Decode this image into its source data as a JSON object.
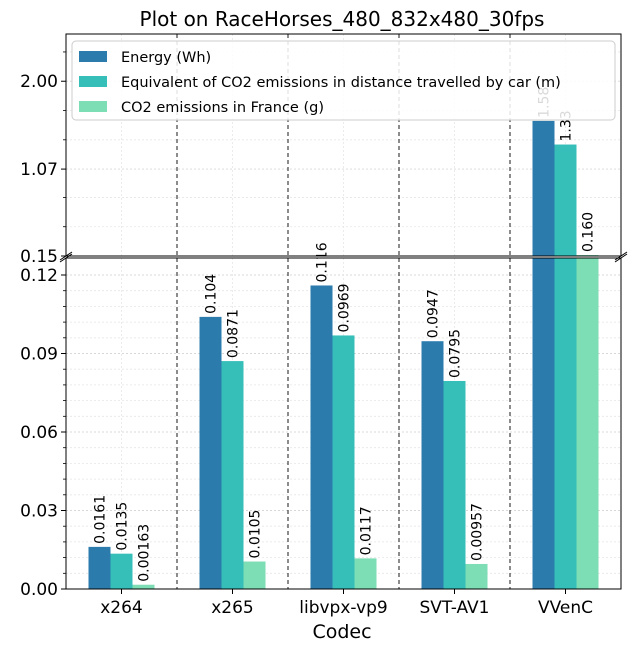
{
  "chart_data": {
    "type": "bar",
    "title": "Plot on RaceHorses_480_832x480_30fps",
    "xlabel": "Codec",
    "ylabel": "",
    "categories": [
      "x264",
      "x265",
      "libvpx-vp9",
      "SVT-AV1",
      "VVenC"
    ],
    "series": [
      {
        "name": "Energy (Wh)",
        "color": "#2c7bad",
        "values": [
          0.0161,
          0.104,
          0.116,
          0.0947,
          1.58
        ],
        "labels": [
          "0.0161",
          "0.104",
          "0.116",
          "0.0947",
          "1.58"
        ]
      },
      {
        "name": "Equivalent of CO2 emissions in distance travelled by car (m)",
        "color": "#35bfb8",
        "values": [
          0.0135,
          0.0871,
          0.0969,
          0.0795,
          1.33
        ],
        "labels": [
          "0.0135",
          "0.0871",
          "0.0969",
          "0.0795",
          "1.33"
        ]
      },
      {
        "name": "CO2 emissions in France (g)",
        "color": "#7ddeb6",
        "values": [
          0.00163,
          0.0105,
          0.0117,
          0.00957,
          0.16
        ],
        "labels": [
          "0.00163",
          "0.0105",
          "0.0117",
          "0.00957",
          "0.160"
        ]
      }
    ],
    "broken_axis": {
      "lower": {
        "ylim": [
          0,
          0.1265
        ],
        "ticks": [
          0.0,
          0.03,
          0.06,
          0.09,
          0.12
        ],
        "tick_labels": [
          "0.00",
          "0.03",
          "0.06",
          "0.09",
          "0.12"
        ]
      },
      "upper": {
        "ylim": [
          0.15,
          2.5
        ],
        "ticks": [
          0.15,
          1.07,
          2.0
        ],
        "tick_labels": [
          "0.15",
          "1.07",
          "2.00"
        ]
      }
    },
    "legend_position": "top-left",
    "grid": true
  }
}
